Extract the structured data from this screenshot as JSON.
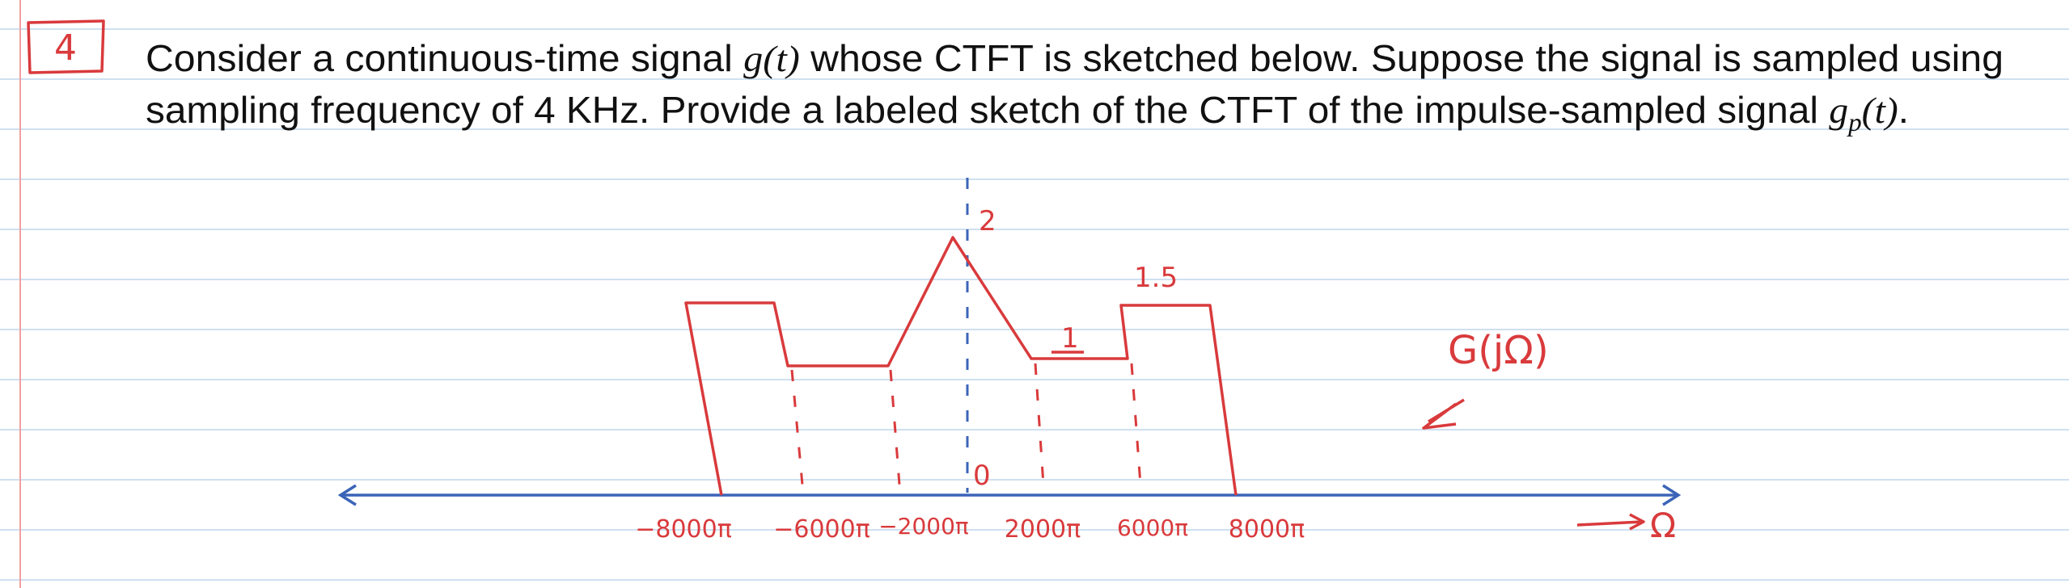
{
  "problem": {
    "number": "4",
    "line1": [
      "Consider a continuous-time signal ",
      "g(t)",
      " whose CTFT is sketched below. Suppose the signal is sampled using"
    ],
    "line2": [
      "sampling frequency of 4 KHz. Provide a labeled sketch of the CTFT of the impulse-sampled signal ",
      "g",
      "p",
      "(t)",
      "."
    ]
  },
  "figure": {
    "function_label": "G(jΩ)",
    "axis_label": "Ω",
    "origin_label": "0",
    "peak_label": "2",
    "high_label": "1.5",
    "low_label": "1",
    "x_labels": [
      "−8000π",
      "−6000π",
      "−2000π",
      "2000π",
      "6000π",
      "8000π"
    ]
  }
}
